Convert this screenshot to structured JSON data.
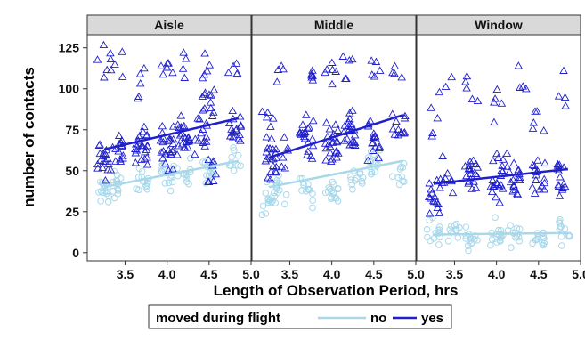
{
  "chart_data": {
    "type": "scatter",
    "xlabel": "Length of Observation Period, hrs",
    "ylabel": "number of contacts",
    "xlim": [
      3.05,
      5.0
    ],
    "ylim": [
      -5,
      133
    ],
    "xticks": [
      "3.5",
      "4.0",
      "4.5",
      "5.0"
    ],
    "yticks": [
      "0",
      "25",
      "50",
      "75",
      "100",
      "125"
    ],
    "legend": {
      "title": "moved during flight",
      "position": "bottom",
      "items": [
        {
          "label": "no",
          "color": "#a8d8ea"
        },
        {
          "label": "yes",
          "color": "#1f1fcc"
        }
      ]
    },
    "panels": [
      {
        "title": "Aisle",
        "fit_no": [
          [
            3.25,
            40
          ],
          [
            4.85,
            56
          ]
        ],
        "fit_yes": [
          [
            3.25,
            63
          ],
          [
            4.85,
            82
          ]
        ],
        "clusters_no": [
          [
            3.25,
            38,
            16
          ],
          [
            3.4,
            40,
            14
          ],
          [
            3.7,
            45,
            14
          ],
          [
            4.0,
            47,
            16
          ],
          [
            4.2,
            48,
            12
          ],
          [
            4.5,
            52,
            15
          ],
          [
            4.8,
            55,
            10
          ]
        ],
        "clusters_yes": [
          [
            3.25,
            57,
            18
          ],
          [
            3.25,
            112,
            5
          ],
          [
            3.4,
            62,
            14
          ],
          [
            3.4,
            112,
            5
          ],
          [
            3.7,
            68,
            24
          ],
          [
            3.7,
            105,
            5
          ],
          [
            4.0,
            64,
            24
          ],
          [
            4.0,
            112,
            6
          ],
          [
            4.2,
            70,
            22
          ],
          [
            4.2,
            116,
            4
          ],
          [
            4.4,
            74,
            14
          ],
          [
            4.5,
            92,
            12
          ],
          [
            4.5,
            116,
            5
          ],
          [
            4.8,
            76,
            16
          ],
          [
            4.8,
            112,
            5
          ],
          [
            4.5,
            48,
            8
          ]
        ]
      },
      {
        "title": "Middle",
        "fit_no": [
          [
            3.25,
            40
          ],
          [
            4.85,
            56
          ]
        ],
        "fit_yes": [
          [
            3.25,
            58
          ],
          [
            4.85,
            84
          ]
        ],
        "clusters_no": [
          [
            3.25,
            32,
            16
          ],
          [
            3.4,
            40,
            12
          ],
          [
            3.7,
            38,
            14
          ],
          [
            4.0,
            38,
            16
          ],
          [
            4.3,
            45,
            12
          ],
          [
            4.5,
            55,
            14
          ],
          [
            4.8,
            48,
            10
          ]
        ],
        "clusters_yes": [
          [
            3.25,
            58,
            16
          ],
          [
            3.25,
            80,
            6
          ],
          [
            3.4,
            58,
            12
          ],
          [
            3.4,
            112,
            4
          ],
          [
            3.7,
            70,
            22
          ],
          [
            3.7,
            110,
            6
          ],
          [
            4.0,
            66,
            24
          ],
          [
            4.0,
            108,
            6
          ],
          [
            4.2,
            72,
            22
          ],
          [
            4.2,
            115,
            5
          ],
          [
            4.5,
            65,
            16
          ],
          [
            4.5,
            112,
            5
          ],
          [
            4.8,
            75,
            12
          ],
          [
            4.8,
            110,
            4
          ]
        ]
      },
      {
        "title": "Window",
        "fit_no": [
          [
            3.25,
            11
          ],
          [
            4.85,
            12
          ]
        ],
        "fit_yes": [
          [
            3.25,
            42
          ],
          [
            4.85,
            51
          ]
        ],
        "clusters_no": [
          [
            3.25,
            11,
            14
          ],
          [
            3.5,
            11,
            10
          ],
          [
            3.7,
            10,
            14
          ],
          [
            4.0,
            11,
            16
          ],
          [
            4.2,
            11,
            12
          ],
          [
            4.5,
            11,
            14
          ],
          [
            4.8,
            12,
            12
          ]
        ],
        "clusters_yes": [
          [
            3.25,
            35,
            14
          ],
          [
            3.25,
            80,
            4
          ],
          [
            3.4,
            45,
            10
          ],
          [
            3.4,
            95,
            3
          ],
          [
            3.7,
            48,
            20
          ],
          [
            3.7,
            95,
            5
          ],
          [
            4.0,
            45,
            22
          ],
          [
            4.0,
            92,
            5
          ],
          [
            4.2,
            45,
            18
          ],
          [
            4.3,
            100,
            4
          ],
          [
            4.5,
            48,
            16
          ],
          [
            4.5,
            80,
            5
          ],
          [
            4.8,
            45,
            14
          ],
          [
            4.8,
            100,
            4
          ]
        ]
      }
    ]
  }
}
